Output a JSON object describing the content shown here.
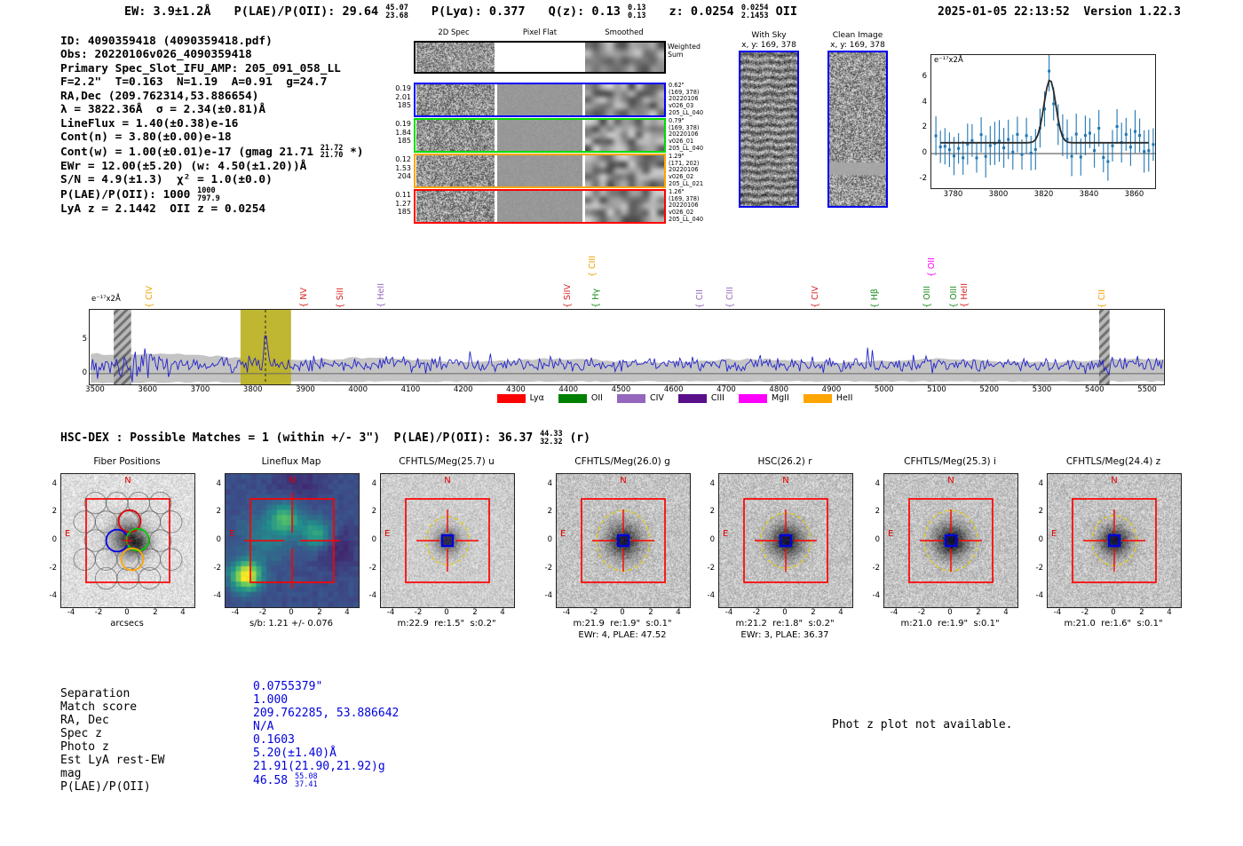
{
  "header": {
    "ew": {
      "label": "EW:",
      "value": "3.9±1.2Å"
    },
    "plae": {
      "label": "P(LAE)/P(OII):",
      "value": "29.64",
      "sup": "45.07",
      "sub": "23.68"
    },
    "plya": {
      "label": "P(Lyα):",
      "value": "0.377"
    },
    "qz": {
      "label": "Q(z):",
      "value": "0.13",
      "sup": "0.13",
      "sub": "0.13"
    },
    "z": {
      "label": "z:",
      "value": "0.0254",
      "sup": "0.0254",
      "sub": "2.1453",
      "suffix": "OII"
    },
    "datetime": "2025-01-05 22:13:52",
    "version": "Version 1.22.3"
  },
  "info": {
    "lines": [
      {
        "pre": "ID: 4090359418 (4090359418.pdf)"
      },
      {
        "pre": "Obs: 20220106v026_4090359418"
      },
      {
        "pre": "Primary Spec_Slot_IFU_AMP: 205_091_058_LL"
      },
      {
        "pre": "F=2.2\"  T=0.163  N=1.19  A=0.91  g=24.7"
      },
      {
        "pre": "RA,Dec (209.762314,53.886654)"
      },
      {
        "pre": "λ = 3822.36Å  σ = 2.34(±0.81)Å"
      },
      {
        "pre": "LineFlux = 1.40(±0.38)e-16"
      },
      {
        "pre": "Cont(n) = 3.80(±0.00)e-18"
      },
      {
        "pre": "Cont(w) = 1.00(±0.01)e-17 (gmag 21.71 ",
        "sup": "21.72",
        "sub": "21.70",
        "post": " *)"
      },
      {
        "pre": "EWr = 12.00(±5.20) (w: 4.50(±1.20))Å"
      },
      {
        "pre": "S/N = 4.9(±1.3)  χ² = 1.0(±0.0)"
      },
      {
        "pre": "P(LAE)/P(OII): 1000 ",
        "sup": "1000",
        "sub": "797.9"
      },
      {
        "pre": "LyA z = 2.1442  OII z = 0.0254"
      }
    ]
  },
  "spec2d": {
    "col_headers": [
      "2D Spec",
      "Pixel Flat",
      "Smoothed"
    ],
    "weighted_label_1": "Weighted",
    "weighted_label_2": "Sum",
    "rows": [
      {
        "color": "#0000ff",
        "left": [
          "0.19",
          "2.01",
          "185"
        ],
        "right": [
          "0.62\"",
          "(169, 378)",
          "20220106",
          "v026_03",
          "205_LL_040"
        ]
      },
      {
        "color": "#00dd00",
        "left": [
          "0.19",
          "1.84",
          "185"
        ],
        "right": [
          "0.79\"",
          "(169, 378)",
          "20220106",
          "v026_01",
          "205_LL_040"
        ]
      },
      {
        "color": "#ffa500",
        "left": [
          "0.12",
          "1.53",
          "204"
        ],
        "right": [
          "1.29\"",
          "(171, 202)",
          "20220106",
          "v026_02",
          "205_LL_021"
        ]
      },
      {
        "color": "#ff0000",
        "left": [
          "0.11",
          "1.27",
          "185"
        ],
        "right": [
          "1.26\"",
          "(169, 378)",
          "20220106",
          "v026_02",
          "205_LL_040"
        ]
      }
    ]
  },
  "sky_panels": {
    "with_sky": {
      "title": "With Sky",
      "coords": "x, y: 169, 378"
    },
    "clean": {
      "title": "Clean Image",
      "coords": "x, y: 169, 378"
    }
  },
  "hsc": {
    "pre": "HSC-DEX : Possible Matches = 1 (within +/- 3\")  P(LAE)/P(OII): ",
    "value": "36.37",
    "sup": "44.33",
    "sub": "32.32",
    "suffix": " (r)"
  },
  "cutouts": {
    "tick_labels": [
      "-4",
      "-2",
      "0",
      "2",
      "4"
    ],
    "n_label": "N",
    "e_label": "E",
    "panels": [
      {
        "title": "Fiber Positions",
        "caption": "arcsecs",
        "caption2": ""
      },
      {
        "title": "Lineflux Map",
        "caption": "s/b: 1.21 +/- 0.076",
        "caption2": ""
      },
      {
        "title": "CFHTLS/Meg(25.7) u",
        "caption": "m:22.9  re:1.5\"  s:0.2\"",
        "caption2": ""
      },
      {
        "title": "CFHTLS/Meg(26.0) g",
        "caption": "m:21.9  re:1.9\"  s:0.1\"",
        "caption2": "EWr: 4, PLAE: 47.52"
      },
      {
        "title": "HSC(26.2) r",
        "caption": "m:21.2  re:1.8\"  s:0.2\"",
        "caption2": "EWr: 3, PLAE: 36.37"
      },
      {
        "title": "CFHTLS/Meg(25.3) i",
        "caption": "m:21.0  re:1.9\"  s:0.1\"",
        "caption2": ""
      },
      {
        "title": "CFHTLS/Meg(24.4) z",
        "caption": "m:21.0  re:1.6\"  s:0.1\"",
        "caption2": ""
      }
    ]
  },
  "match_table": {
    "rows": [
      {
        "label": "Separation",
        "value": "0.0755379\""
      },
      {
        "label": "Match score",
        "value": "1.000"
      },
      {
        "label": "RA, Dec",
        "value": "209.762285, 53.886642"
      },
      {
        "label": "Spec z",
        "value": "N/A"
      },
      {
        "label": "Photo z",
        "value": "0.1603"
      },
      {
        "label": "Est LyA rest-EW",
        "value": "5.20(±1.40)Å"
      },
      {
        "label": "mag",
        "value": "21.91(21.90,21.92)g"
      },
      {
        "label": "P(LAE)/P(OII)",
        "value": "46.58 ",
        "sup": "55.08",
        "sub": "37.41"
      }
    ]
  },
  "photz_note": "Phot z plot not available.",
  "chart_data": [
    {
      "type": "line",
      "name": "emission-line-zoom-spectrum",
      "title": "",
      "unit_label": "e⁻¹⁷x2Å",
      "x_ticks": [
        3780,
        3800,
        3820,
        3840,
        3860
      ],
      "y_ticks": [
        6,
        4,
        2,
        0,
        -2
      ],
      "x_range": [
        3770,
        3869
      ],
      "y_range": [
        -2.75,
        7.8
      ],
      "gaussian_fit": {
        "center": 3822.36,
        "sigma": 2.34,
        "peak": 5.8,
        "continuum": 0.85
      },
      "marker_color": "#1f77b4",
      "fit_color": "#2b2b2b"
    },
    {
      "type": "line",
      "name": "full-spectrum",
      "title": "",
      "unit_label": "e⁻¹⁷x2Å",
      "x_ticks": [
        3500,
        3600,
        3700,
        3800,
        3900,
        4000,
        4100,
        4200,
        4300,
        4400,
        4500,
        4600,
        4700,
        4800,
        4900,
        5000,
        5100,
        5200,
        5300,
        5400,
        5500
      ],
      "y_ticks": [
        5,
        0
      ],
      "x_range": [
        3488,
        5530
      ],
      "y_range": [
        -1.45,
        9.6
      ],
      "line_color": "#2222cc",
      "highlight_band": [
        3775,
        3871
      ],
      "detected_line": {
        "wavelength": 3822.36,
        "peak": 6.3
      },
      "masked_regions": [
        [
          3534,
          3567
        ],
        [
          5407,
          5427
        ]
      ],
      "line_markers": [
        {
          "label": "CIV",
          "color": "orange",
          "wl": 3607,
          "high": false
        },
        {
          "label": "NV",
          "color": "red",
          "wl": 3900,
          "high": false
        },
        {
          "label": "SiII",
          "color": "red",
          "wl": 3970,
          "high": false
        },
        {
          "label": "HeII",
          "color": "purple",
          "wl": 4046,
          "high": false
        },
        {
          "label": "SiIV",
          "color": "red",
          "wl": 4402,
          "high": false
        },
        {
          "label": "CIII",
          "color": "orange",
          "wl": 4449,
          "high": true
        },
        {
          "label": "Hγ",
          "color": "green",
          "wl": 4455,
          "high": false
        },
        {
          "label": "CII",
          "color": "purple",
          "wl": 4653,
          "high": false
        },
        {
          "label": "CIII",
          "color": "purple",
          "wl": 4710,
          "high": false
        },
        {
          "label": "CIV",
          "color": "red",
          "wl": 4872,
          "high": false
        },
        {
          "label": "Hβ",
          "color": "green",
          "wl": 4985,
          "high": false
        },
        {
          "label": "OIII",
          "color": "green",
          "wl": 5085,
          "high": false
        },
        {
          "label": "OII",
          "color": "magenta",
          "wl": 5093,
          "high": true
        },
        {
          "label": "OIII",
          "color": "green",
          "wl": 5135,
          "high": false
        },
        {
          "label": "HeII",
          "color": "red",
          "wl": 5156,
          "high": false
        },
        {
          "label": "CII",
          "color": "orange",
          "wl": 5417,
          "high": false
        }
      ],
      "legend": [
        {
          "label": "Lyα",
          "color": "#ff0000"
        },
        {
          "label": "OII",
          "color": "#008000"
        },
        {
          "label": "CIV",
          "color": "#9467bd"
        },
        {
          "label": "CIII",
          "color": "#5a0f8a"
        },
        {
          "label": "MgII",
          "color": "#ff00ff"
        },
        {
          "label": "HeII",
          "color": "#ffa500"
        }
      ]
    }
  ]
}
